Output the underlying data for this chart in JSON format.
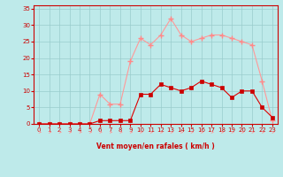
{
  "hours": [
    0,
    1,
    2,
    3,
    4,
    5,
    6,
    7,
    8,
    9,
    10,
    11,
    12,
    13,
    14,
    15,
    16,
    17,
    18,
    19,
    20,
    21,
    22,
    23
  ],
  "rafales": [
    0,
    0,
    0,
    0,
    0,
    0,
    9,
    6,
    6,
    19,
    26,
    24,
    27,
    32,
    27,
    25,
    26,
    27,
    27,
    26,
    25,
    24,
    13,
    1
  ],
  "moyen": [
    0,
    0,
    0,
    0,
    0,
    0,
    1,
    1,
    1,
    1,
    9,
    9,
    12,
    11,
    10,
    11,
    13,
    12,
    11,
    8,
    10,
    10,
    5,
    2
  ],
  "xlabel": "Vent moyen/en rafales ( km/h )",
  "ylim_min": 0,
  "ylim_max": 36,
  "xlim_min": -0.5,
  "xlim_max": 23.5,
  "bg_color": "#beeaea",
  "grid_color": "#99cccc",
  "line_color_rafales": "#ff9999",
  "line_color_moyen": "#dd0000",
  "marker_color_rafales": "#ff8888",
  "marker_color_moyen": "#cc0000",
  "xlabel_color": "#cc0000",
  "tick_color": "#cc0000",
  "yticks": [
    0,
    5,
    10,
    15,
    20,
    25,
    30,
    35
  ],
  "xticks": [
    0,
    1,
    2,
    3,
    4,
    5,
    6,
    7,
    8,
    9,
    10,
    11,
    12,
    13,
    14,
    15,
    16,
    17,
    18,
    19,
    20,
    21,
    22,
    23
  ]
}
